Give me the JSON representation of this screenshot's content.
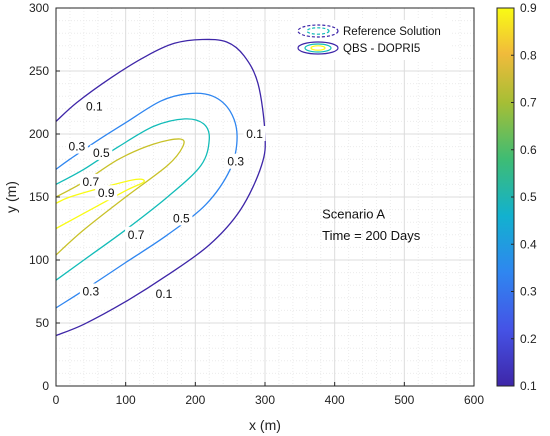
{
  "chart_data": {
    "type": "contour",
    "xlabel": "x (m)",
    "ylabel": "y (m)",
    "xlim": [
      0,
      600
    ],
    "ylim": [
      0,
      300
    ],
    "x_ticks": [
      0,
      100,
      200,
      300,
      400,
      500,
      600
    ],
    "y_ticks": [
      0,
      50,
      100,
      150,
      200,
      250,
      300
    ],
    "grid": true,
    "minor_grid": true,
    "legend": {
      "placement": "top-right",
      "entries": [
        "Reference Solution",
        "QBS - DOPRI5"
      ]
    },
    "annotations": [
      "Scenario A",
      "Time = 200 Days"
    ],
    "colorbar": {
      "range": [
        0.1,
        0.9
      ],
      "ticks": [
        0.1,
        0.2,
        0.3,
        0.4,
        0.5,
        0.6,
        0.7,
        0.8,
        0.9
      ],
      "colormap": "parula"
    },
    "contours": [
      {
        "level": 0.1,
        "label": "0.1",
        "color": "#3e26a8",
        "points": [
          [
            0,
            40
          ],
          [
            40,
            49
          ],
          [
            100,
            67
          ],
          [
            160,
            88
          ],
          [
            220,
            112
          ],
          [
            265,
            140
          ],
          [
            295,
            175
          ],
          [
            300,
            200
          ],
          [
            290,
            240
          ],
          [
            270,
            262
          ],
          [
            245,
            273
          ],
          [
            210,
            275
          ],
          [
            170,
            272
          ],
          [
            130,
            262
          ],
          [
            80,
            245
          ],
          [
            30,
            225
          ],
          [
            0,
            210
          ]
        ],
        "label_positions": [
          [
            155,
            73
          ],
          [
            285,
            200
          ],
          [
            55,
            222
          ]
        ]
      },
      {
        "level": 0.3,
        "label": "0.3",
        "color": "#2f86f0",
        "points": [
          [
            0,
            62
          ],
          [
            40,
            76
          ],
          [
            100,
            98
          ],
          [
            160,
            120
          ],
          [
            215,
            144
          ],
          [
            250,
            172
          ],
          [
            260,
            198
          ],
          [
            250,
            218
          ],
          [
            225,
            230
          ],
          [
            190,
            232
          ],
          [
            150,
            226
          ],
          [
            100,
            209
          ],
          [
            60,
            195
          ],
          [
            20,
            180
          ],
          [
            0,
            172
          ]
        ],
        "label_positions": [
          [
            50,
            75
          ],
          [
            258,
            178
          ],
          [
            30,
            190
          ]
        ]
      },
      {
        "level": 0.5,
        "label": "0.5",
        "color": "#12bcb8",
        "points": [
          [
            0,
            84
          ],
          [
            40,
            100
          ],
          [
            100,
            124
          ],
          [
            160,
            150
          ],
          [
            208,
            175
          ],
          [
            220,
            196
          ],
          [
            212,
            208
          ],
          [
            185,
            212
          ],
          [
            140,
            206
          ],
          [
            90,
            190
          ],
          [
            40,
            172
          ],
          [
            0,
            160
          ]
        ],
        "label_positions": [
          [
            180,
            133
          ],
          [
            65,
            185
          ]
        ]
      },
      {
        "level": 0.7,
        "label": "0.7",
        "color": "#c8c128",
        "points": [
          [
            0,
            104
          ],
          [
            40,
            124
          ],
          [
            100,
            150
          ],
          [
            160,
            175
          ],
          [
            182,
            190
          ],
          [
            178,
            196
          ],
          [
            140,
            192
          ],
          [
            90,
            180
          ],
          [
            40,
            162
          ],
          [
            0,
            150
          ]
        ],
        "label_positions": [
          [
            115,
            120
          ],
          [
            50,
            162
          ]
        ]
      },
      {
        "level": 0.9,
        "label": "0.9",
        "color": "#f9fb14",
        "points": [
          [
            0,
            125
          ],
          [
            50,
            140
          ],
          [
            100,
            155
          ],
          [
            126,
            162
          ],
          [
            115,
            164
          ],
          [
            70,
            158
          ],
          [
            20,
            150
          ],
          [
            0,
            145
          ]
        ],
        "label_positions": [
          [
            72,
            153
          ]
        ]
      }
    ]
  }
}
